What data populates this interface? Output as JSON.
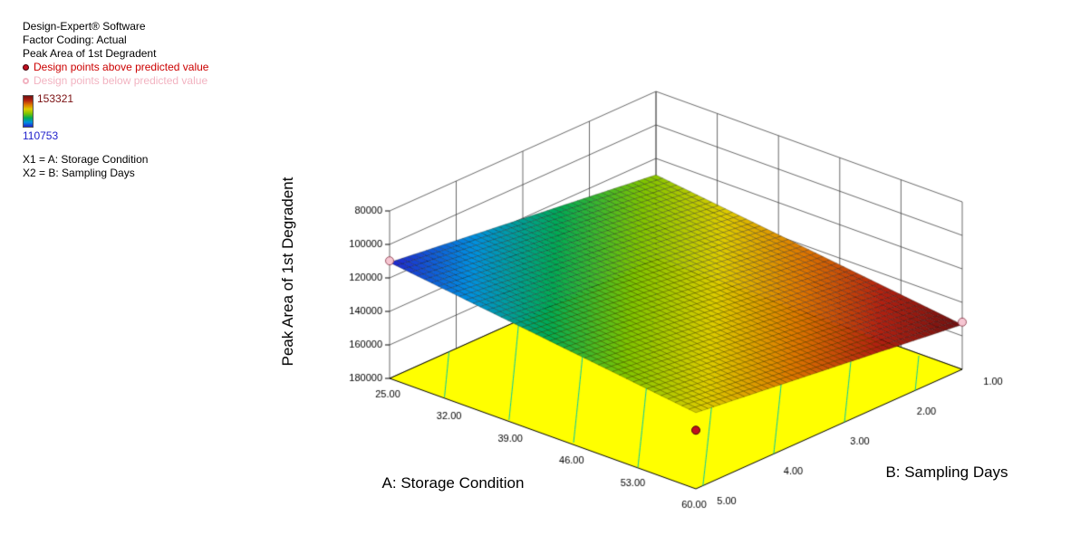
{
  "legend": {
    "software": "Design-Expert® Software",
    "factor_coding": "Factor Coding: Actual",
    "response": "Peak Area of 1st Degradent",
    "points_above_label": "Design points above predicted value",
    "points_below_label": "Design points below predicted value",
    "points_above_color": "#cc0000",
    "points_below_color": "#f2b3c1",
    "colorbar_max": "153321",
    "colorbar_min": "110753",
    "colorbar_max_color": "#7b1113",
    "colorbar_min_color": "#2222cc",
    "x1_label": "X1 = A: Storage Condition",
    "x2_label": "X2 = B: Sampling Days"
  },
  "chart_data": {
    "type": "surface",
    "projection": "3d",
    "x_axis": {
      "label": "A: Storage Condition",
      "min": 25,
      "max": 60,
      "tick_values": [
        25,
        32,
        39,
        46,
        53,
        60
      ],
      "tick_labels": [
        "25.00",
        "32.00",
        "39.00",
        "46.00",
        "53.00",
        "60.00"
      ]
    },
    "y_axis": {
      "label": "B: Sampling Days",
      "min": 1,
      "max": 5,
      "tick_values": [
        1,
        2,
        3,
        4,
        5
      ],
      "tick_labels": [
        "1.00",
        "2.00",
        "3.00",
        "4.00",
        "5.00"
      ]
    },
    "z_axis": {
      "label": "Peak Area of 1st Degradent",
      "min": 80000,
      "max": 180000,
      "inverted": true,
      "tick_values": [
        80000,
        100000,
        120000,
        140000,
        160000,
        180000
      ],
      "tick_labels": [
        "80000",
        "100000",
        "120000",
        "140000",
        "160000",
        "180000"
      ]
    },
    "surface": {
      "min": 110753,
      "max": 153321,
      "corner_values": {
        "A25_B5": 110753,
        "A60_B5": 134500,
        "A25_B1": 129800,
        "A60_B1": 153321
      },
      "gradient": [
        "#2222cc",
        "#0090e0",
        "#00aa55",
        "#7fc400",
        "#ddcc00",
        "#dd7700",
        "#b22010",
        "#6e1010"
      ],
      "contour_levels": [
        115000,
        120000,
        125000,
        130000,
        135000,
        140000,
        145000,
        150000
      ]
    },
    "floor_color": "#ffff00",
    "contour_color": "#00c8a8",
    "point_above_color": "#c01020",
    "point_below_color": "#f6c6d2",
    "design_points": [
      {
        "A": 25,
        "B": 5,
        "value": 109800,
        "relation": "below"
      },
      {
        "A": 60,
        "B": 1,
        "value": 151800,
        "relation": "below"
      },
      {
        "A": 60,
        "B": 5,
        "value": 145000,
        "relation": "above"
      }
    ]
  }
}
